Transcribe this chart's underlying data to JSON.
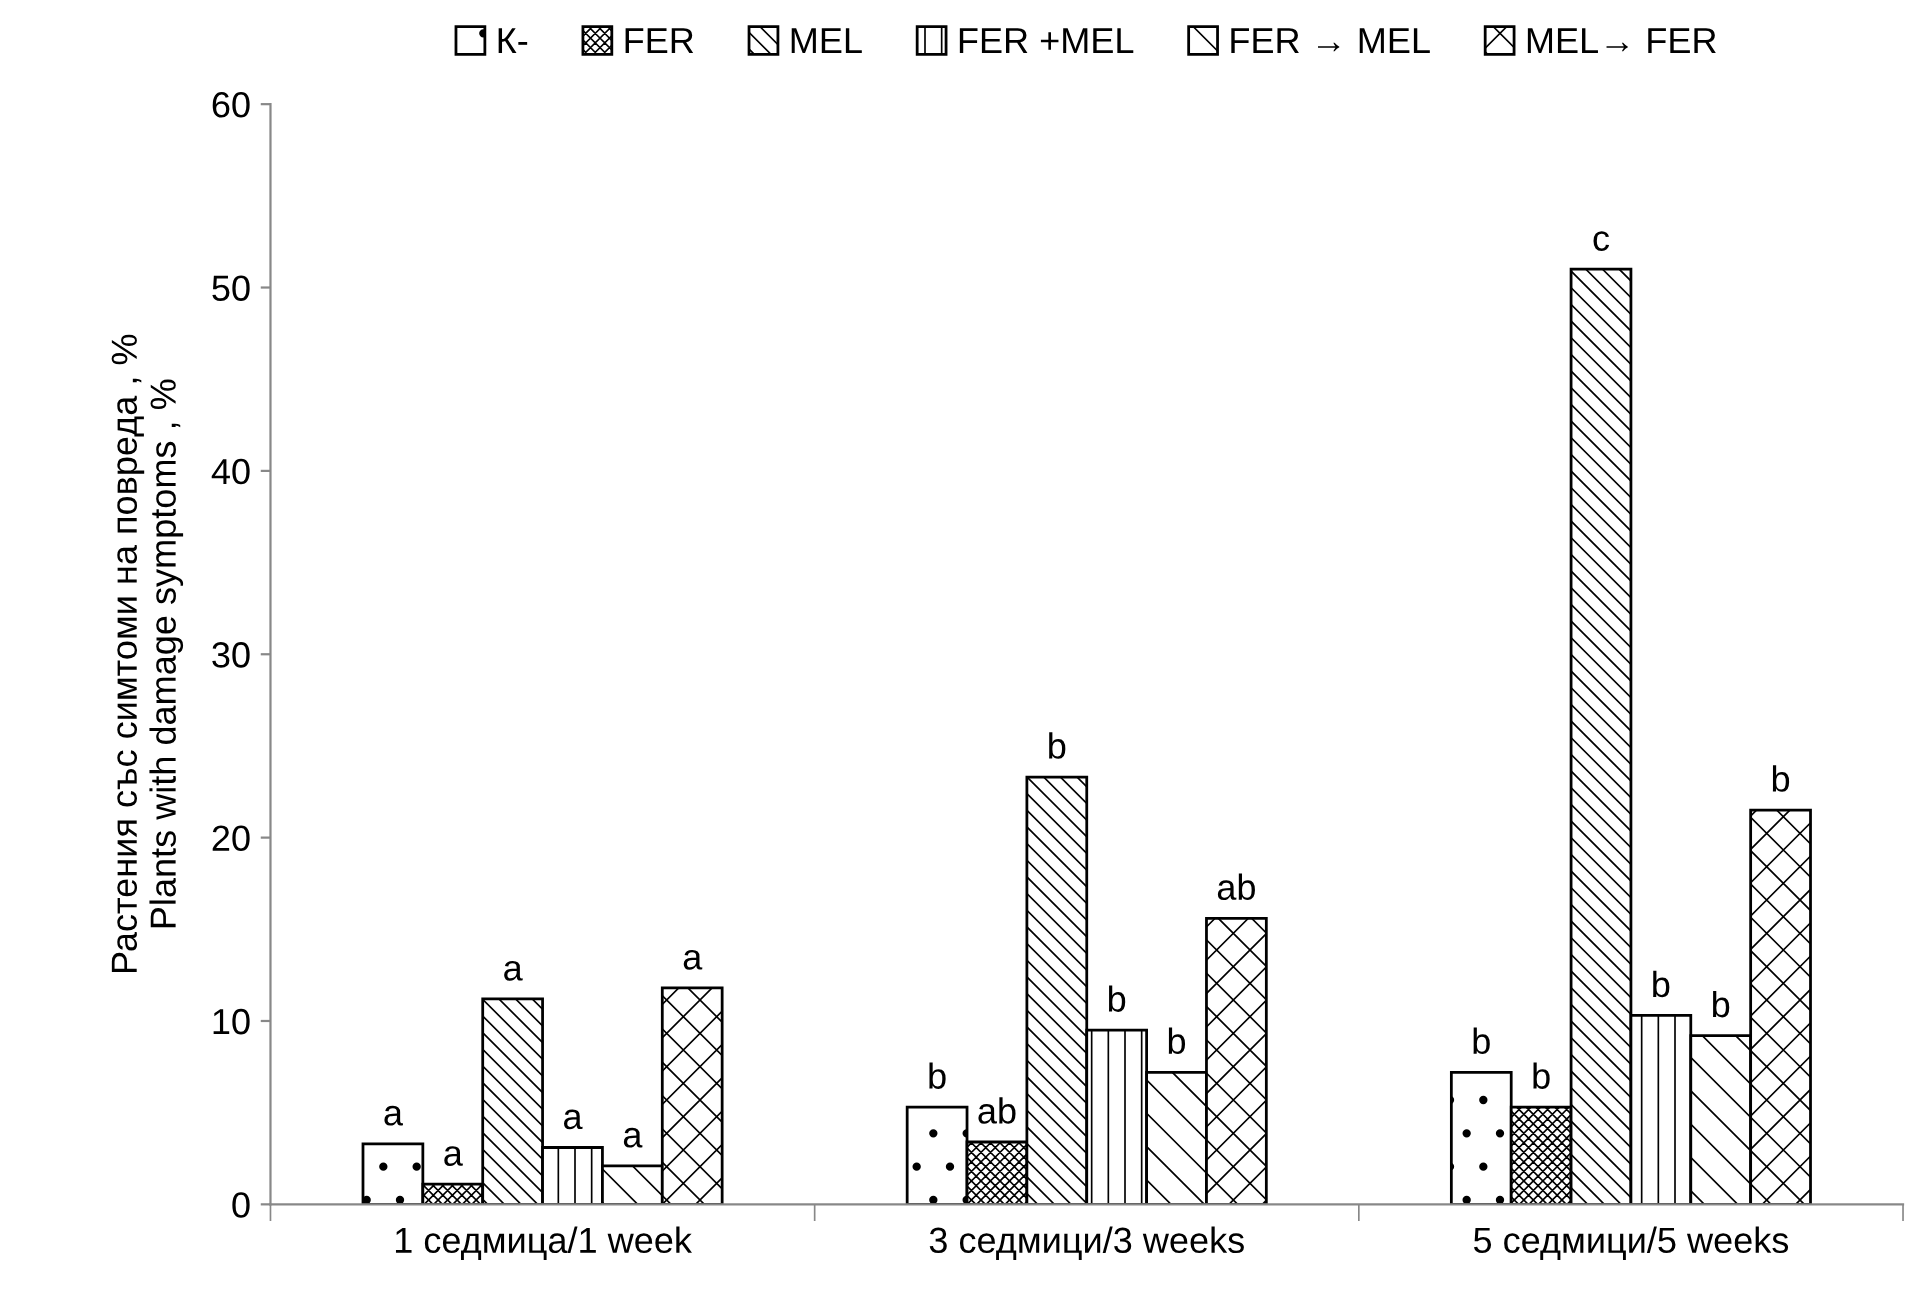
{
  "chart_data": {
    "type": "bar",
    "ylabel": "Растения със симтоми на повреда , %\nPlants with damage symptoms , %",
    "categories": [
      "1 седмица/1 week",
      "3 седмици/3 weeks",
      "5 седмици/5 weeks"
    ],
    "series": [
      {
        "name": "К-",
        "color": "#000000",
        "values": [
          3.3,
          5.3,
          7.2
        ]
      },
      {
        "name": "FER",
        "color": "#000000",
        "values": [
          1.1,
          3.4,
          5.3
        ]
      },
      {
        "name": "MEL",
        "color": "#000000",
        "values": [
          11.2,
          23.3,
          51.0
        ]
      },
      {
        "name": "FER +MEL",
        "color": "#000000",
        "values": [
          3.1,
          9.5,
          10.3
        ]
      },
      {
        "name": "FER → MEL",
        "color": "#000000",
        "values": [
          2.1,
          7.2,
          9.2
        ]
      },
      {
        "name": "MEL→ FER",
        "color": "#000000",
        "values": [
          11.8,
          15.6,
          21.5
        ]
      }
    ],
    "annotations": [
      "a",
      "a",
      "a",
      "a",
      "a",
      "a",
      "b",
      "ab",
      "b",
      "b",
      "b",
      "ab",
      "b",
      "b",
      "c",
      "b",
      "b",
      "b"
    ],
    "ylim": [
      0,
      60
    ],
    "yticks": [
      0,
      10,
      20,
      30,
      40,
      50,
      60
    ],
    "legend": "top",
    "grid": false
  }
}
